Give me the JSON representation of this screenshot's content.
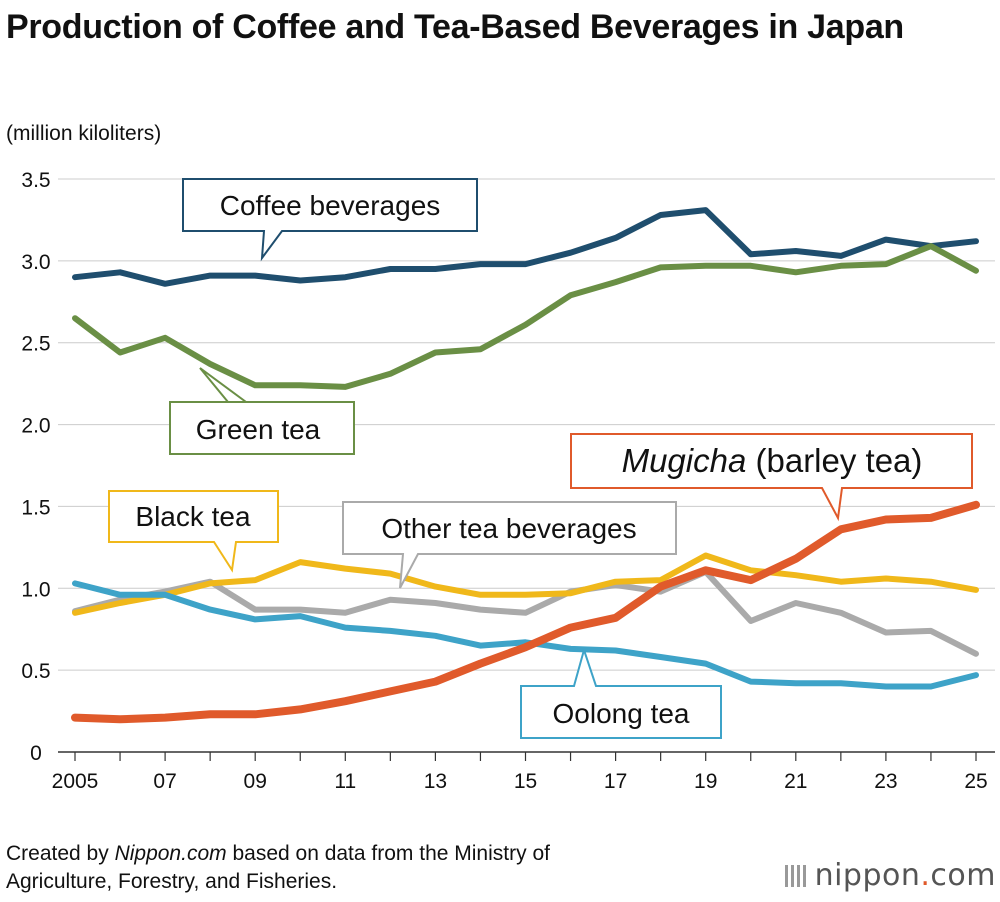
{
  "title": "Production of Coffee and Tea-Based Beverages in Japan",
  "unit_label": "(million kiloliters)",
  "credit": {
    "prefix": "Created by ",
    "source_italic": "Nippon.com",
    "rest_line1": " based on data from the Ministry of",
    "line2": "Agriculture, Forestry, and Fisheries."
  },
  "logo": {
    "name": "nippon",
    "dot": ".",
    "tld": "com",
    "icon": "bars-icon"
  },
  "chart_data": {
    "type": "line",
    "ylim": [
      0,
      3.5
    ],
    "yticks": [
      0,
      0.5,
      1.0,
      1.5,
      2.0,
      2.5,
      3.0,
      3.5
    ],
    "ytick_labels": [
      "0",
      "0.5",
      "1.0",
      "1.5",
      "2.0",
      "2.5",
      "3.0",
      "3.5"
    ],
    "x": [
      2005,
      2006,
      2007,
      2008,
      2009,
      2010,
      2011,
      2012,
      2013,
      2014,
      2015,
      2016,
      2017,
      2018,
      2019,
      2020,
      2021,
      2022,
      2023,
      2024,
      2025
    ],
    "xtick_values": [
      2005,
      2007,
      2009,
      2011,
      2013,
      2015,
      2017,
      2019,
      2021,
      2023,
      2025
    ],
    "xtick_labels": [
      "2005",
      "07",
      "09",
      "11",
      "13",
      "15",
      "17",
      "19",
      "21",
      "23",
      "25"
    ],
    "grid": true,
    "series": [
      {
        "name": "Coffee beverages",
        "color": "#1f4e6e",
        "values": [
          2.9,
          2.93,
          2.86,
          2.91,
          2.91,
          2.88,
          2.9,
          2.95,
          2.95,
          2.98,
          2.98,
          3.05,
          3.14,
          3.28,
          3.31,
          3.04,
          3.06,
          3.03,
          3.13,
          3.09,
          3.12
        ]
      },
      {
        "name": "Green tea",
        "color": "#6a8f45",
        "values": [
          2.65,
          2.44,
          2.53,
          2.37,
          2.24,
          2.24,
          2.23,
          2.31,
          2.44,
          2.46,
          2.61,
          2.79,
          2.87,
          2.96,
          2.97,
          2.97,
          2.93,
          2.97,
          2.98,
          3.09,
          2.94
        ]
      },
      {
        "name": "Other tea beverages",
        "color": "#aaaaaa",
        "values": [
          0.86,
          0.93,
          0.98,
          1.04,
          0.87,
          0.87,
          0.85,
          0.93,
          0.91,
          0.87,
          0.85,
          0.98,
          1.02,
          0.98,
          1.1,
          0.8,
          0.91,
          0.85,
          0.73,
          0.74,
          0.6
        ]
      },
      {
        "name": "Black tea",
        "color": "#f0b81a",
        "values": [
          0.85,
          0.91,
          0.96,
          1.03,
          1.05,
          1.16,
          1.12,
          1.09,
          1.01,
          0.96,
          0.96,
          0.97,
          1.04,
          1.05,
          1.2,
          1.11,
          1.08,
          1.04,
          1.06,
          1.04,
          0.99
        ]
      },
      {
        "name": "Oolong tea",
        "color": "#3ea3c8",
        "values": [
          1.03,
          0.96,
          0.96,
          0.87,
          0.81,
          0.83,
          0.76,
          0.74,
          0.71,
          0.65,
          0.67,
          0.63,
          0.62,
          0.58,
          0.54,
          0.43,
          0.42,
          0.42,
          0.4,
          0.4,
          0.47
        ]
      },
      {
        "name": "Mugicha (barley tea)",
        "name_italic": "Mugicha",
        "name_rest": " (barley tea)",
        "color": "#e05a2b",
        "values": [
          0.21,
          0.2,
          0.21,
          0.23,
          0.23,
          0.26,
          0.31,
          0.37,
          0.43,
          0.54,
          0.64,
          0.76,
          0.82,
          1.01,
          1.11,
          1.05,
          1.18,
          1.36,
          1.42,
          1.43,
          1.51
        ]
      }
    ]
  }
}
